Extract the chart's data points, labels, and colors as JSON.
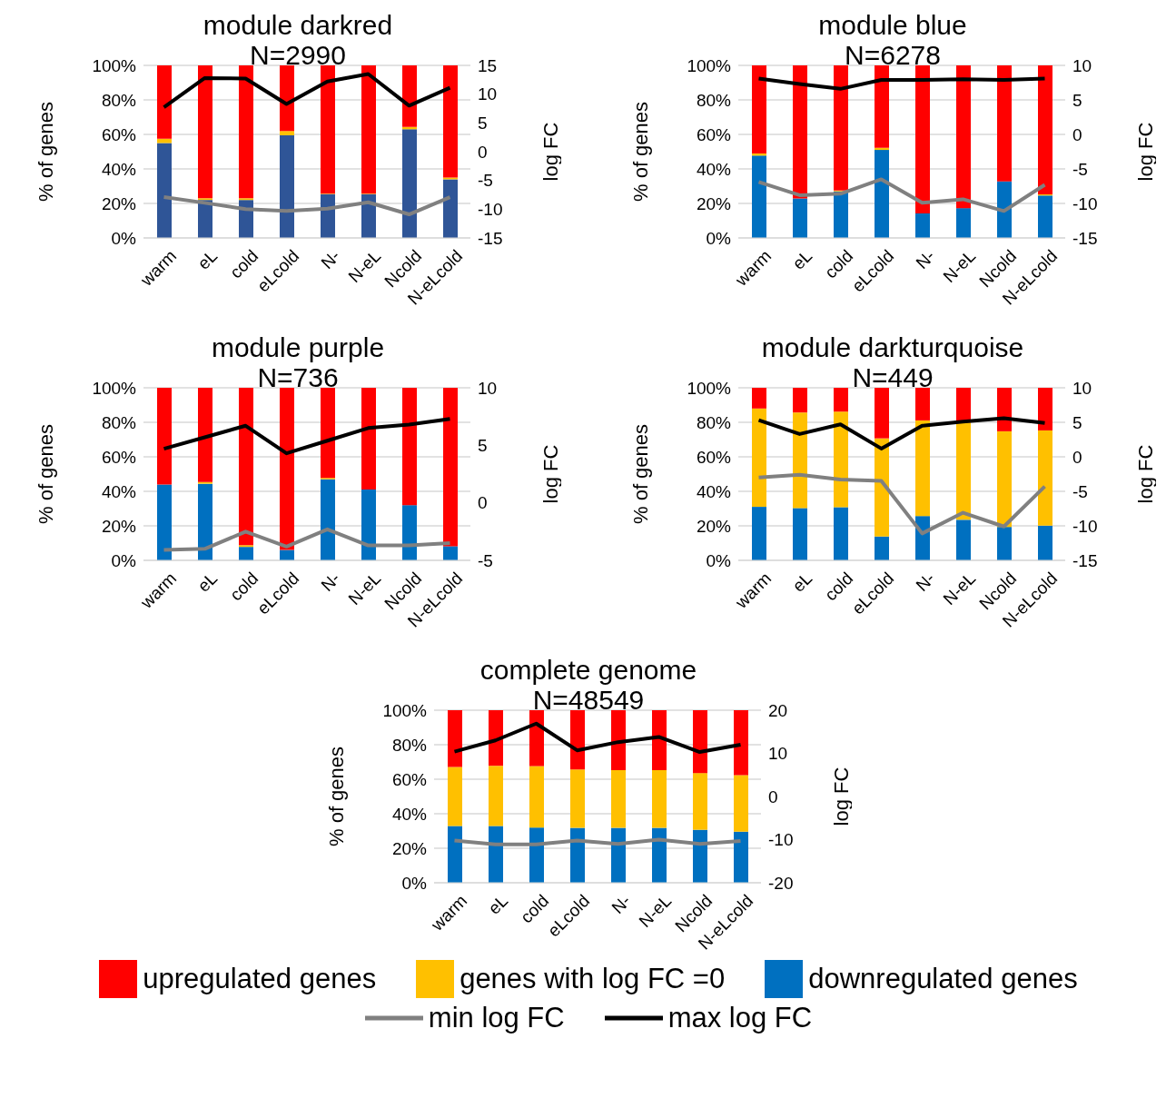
{
  "chart_data": [
    {
      "type": "bar",
      "title": "module darkred",
      "subtitle": "N=2990",
      "ylabel": "% of genes",
      "y2label": "log FC",
      "categories": [
        "warm",
        "eL",
        "cold",
        "eLcold",
        "N-",
        "N-eL",
        "Ncold",
        "N-eLcold"
      ],
      "stacked": true,
      "grid": "y",
      "ylim": [
        0,
        100
      ],
      "yticks": [
        {
          "value": 0,
          "label": "0%"
        },
        {
          "value": 20,
          "label": "20%"
        },
        {
          "value": 40,
          "label": "40%"
        },
        {
          "value": 60,
          "label": "60%"
        },
        {
          "value": 80,
          "label": "80%"
        },
        {
          "value": 100,
          "label": "100%"
        }
      ],
      "y2lim": [
        -15,
        15
      ],
      "y2ticks": [
        -15,
        -10,
        -5,
        0,
        5,
        10,
        15
      ],
      "series": [
        {
          "color": "#2f5597",
          "values": [
            55,
            22,
            22,
            59.5,
            25.3,
            25.3,
            63,
            34
          ]
        },
        {
          "color": "#ffc000",
          "values": [
            2.5,
            1,
            1,
            2.5,
            0.3,
            0.3,
            1.3,
            1
          ]
        },
        {
          "color": "#ff0000",
          "values": [
            42.5,
            77,
            77,
            38,
            74.4,
            74.4,
            35.7,
            65
          ]
        },
        {
          "type": "line",
          "axis": "y2",
          "color": "#808080",
          "values": [
            -7.9,
            -8.9,
            -10,
            -10.3,
            -9.9,
            -8.8,
            -10.9,
            -7.9
          ]
        },
        {
          "type": "line",
          "axis": "y2",
          "color": "#000000",
          "values": [
            7.7,
            12.8,
            12.7,
            8.3,
            12.2,
            13.5,
            8,
            11.1
          ]
        }
      ]
    },
    {
      "type": "bar",
      "title": "module blue",
      "subtitle": "N=6278",
      "ylabel": "% of genes",
      "y2label": "log FC",
      "categories": [
        "warm",
        "eL",
        "cold",
        "eLcold",
        "N-",
        "N-eL",
        "Ncold",
        "N-eLcold"
      ],
      "stacked": true,
      "grid": "y",
      "ylim": [
        0,
        100
      ],
      "yticks": [
        {
          "value": 0,
          "label": "0%"
        },
        {
          "value": 20,
          "label": "20%"
        },
        {
          "value": 40,
          "label": "40%"
        },
        {
          "value": 60,
          "label": "60%"
        },
        {
          "value": 80,
          "label": "80%"
        },
        {
          "value": 100,
          "label": "100%"
        }
      ],
      "y2lim": [
        -15,
        10
      ],
      "y2ticks": [
        -15,
        -10,
        -5,
        0,
        5,
        10
      ],
      "series": [
        {
          "color": "#0070c0",
          "values": [
            47.7,
            22.9,
            27,
            51,
            14.2,
            17.3,
            32.8,
            24.6
          ]
        },
        {
          "color": "#ffc000",
          "values": [
            1.2,
            null,
            0.5,
            1.2,
            0,
            0,
            0,
            0.7
          ]
        },
        {
          "color": "#ff0000",
          "values": [
            51.1,
            77.1,
            72.5,
            47.8,
            85.8,
            82.7,
            67.2,
            74.7
          ]
        },
        {
          "type": "line",
          "axis": "y2",
          "color": "#808080",
          "values": [
            -6.9,
            -8.8,
            -8.6,
            -6.5,
            -9.9,
            -9.4,
            -11.1,
            -7.3
          ]
        },
        {
          "type": "line",
          "axis": "y2",
          "color": "#000000",
          "values": [
            8.1,
            7.3,
            6.6,
            7.9,
            7.9,
            8,
            7.9,
            8.1
          ]
        }
      ]
    },
    {
      "type": "bar",
      "title": "module purple",
      "subtitle": "N=736",
      "ylabel": "% of genes",
      "y2label": "log FC",
      "categories": [
        "warm",
        "eL",
        "cold",
        "eLcold",
        "N-",
        "N-eL",
        "Ncold",
        "N-eLcold"
      ],
      "stacked": true,
      "grid": "y",
      "ylim": [
        0,
        100
      ],
      "yticks": [
        {
          "value": 0,
          "label": "0%"
        },
        {
          "value": 20,
          "label": "20%"
        },
        {
          "value": 40,
          "label": "40%"
        },
        {
          "value": 60,
          "label": "60%"
        },
        {
          "value": 80,
          "label": "80%"
        },
        {
          "value": 100,
          "label": "100%"
        }
      ],
      "y2lim": [
        -5,
        10
      ],
      "y2ticks": [
        -5,
        0,
        5,
        10
      ],
      "series": [
        {
          "color": "#0070c0",
          "values": [
            44,
            44.4,
            7.8,
            6,
            47,
            41,
            32,
            8.2
          ]
        },
        {
          "color": "#ffc000",
          "values": [
            null,
            1,
            1,
            0,
            0.8,
            0,
            0,
            0
          ]
        },
        {
          "color": "#ff0000",
          "values": [
            56,
            54.6,
            91.2,
            94,
            52.2,
            59,
            68,
            91.8
          ]
        },
        {
          "type": "line",
          "axis": "y2",
          "color": "#808080",
          "values": [
            -4.1,
            -4,
            -2.5,
            -3.8,
            -2.3,
            -3.7,
            -3.7,
            -3.5
          ]
        },
        {
          "type": "line",
          "axis": "y2",
          "color": "#000000",
          "values": [
            4.7,
            5.7,
            6.7,
            4.3,
            5.4,
            6.5,
            6.8,
            7.3
          ]
        }
      ]
    },
    {
      "type": "bar",
      "title": "module darkturquoise",
      "subtitle": "N=449",
      "ylabel": "% of genes",
      "y2label": "log FC",
      "categories": [
        "warm",
        "eL",
        "cold",
        "eLcold",
        "N-",
        "N-eL",
        "Ncold",
        "N-eLcold"
      ],
      "stacked": true,
      "grid": "y",
      "ylim": [
        0,
        100
      ],
      "yticks": [
        {
          "value": 0,
          "label": "0%"
        },
        {
          "value": 20,
          "label": "20%"
        },
        {
          "value": 40,
          "label": "40%"
        },
        {
          "value": 60,
          "label": "60%"
        },
        {
          "value": 80,
          "label": "80%"
        },
        {
          "value": 100,
          "label": "100%"
        }
      ],
      "y2lim": [
        -15,
        10
      ],
      "y2ticks": [
        -15,
        -10,
        -5,
        0,
        5,
        10
      ],
      "series": [
        {
          "color": "#0070c0",
          "values": [
            31,
            30.3,
            30.8,
            13.8,
            25.7,
            23.5,
            19.4,
            20.1
          ]
        },
        {
          "color": "#ffc000",
          "values": [
            57,
            55.4,
            55.4,
            56.9,
            55.4,
            56.4,
            55.4,
            55.2
          ]
        },
        {
          "color": "#ff0000",
          "values": [
            12,
            14.3,
            13.8,
            29.3,
            18.9,
            20.1,
            25.2,
            24.7
          ]
        },
        {
          "type": "line",
          "axis": "y2",
          "color": "#808080",
          "values": [
            -3,
            -2.6,
            -3.3,
            -3.5,
            -11.1,
            -8.1,
            -10.1,
            -4.3
          ]
        },
        {
          "type": "line",
          "axis": "y2",
          "color": "#000000",
          "values": [
            5.3,
            3.3,
            4.7,
            1.2,
            4.5,
            5.1,
            5.6,
            4.9
          ]
        }
      ]
    },
    {
      "type": "bar",
      "title": "complete genome",
      "subtitle": "N=48549",
      "ylabel": "% of genes",
      "y2label": "log FC",
      "categories": [
        "warm",
        "eL",
        "cold",
        "eLcold",
        "N-",
        "N-eL",
        "Ncold",
        "N-eLcold"
      ],
      "stacked": true,
      "grid": "y",
      "legend": "bottom",
      "ylim": [
        0,
        100
      ],
      "yticks": [
        {
          "value": 0,
          "label": "0%"
        },
        {
          "value": 20,
          "label": "20%"
        },
        {
          "value": 40,
          "label": "40%"
        },
        {
          "value": 60,
          "label": "60%"
        },
        {
          "value": 80,
          "label": "80%"
        },
        {
          "value": 100,
          "label": "100%"
        }
      ],
      "y2lim": [
        -20,
        20
      ],
      "y2ticks": [
        -20,
        -10,
        0,
        10,
        20
      ],
      "series": [
        {
          "name": "downregulated genes",
          "color": "#0070c0",
          "values": [
            32.9,
            32.9,
            32,
            31.8,
            31.8,
            31.8,
            30.7,
            29.6
          ]
        },
        {
          "name": "genes with log FC =0",
          "color": "#ffc000",
          "values": [
            34.2,
            34.9,
            35.6,
            33.8,
            33.5,
            33.5,
            32.9,
            32.8
          ]
        },
        {
          "name": "upregulated genes",
          "color": "#ff0000",
          "values": [
            32.9,
            32.2,
            32.4,
            34.4,
            34.7,
            34.7,
            36.4,
            37.6
          ]
        },
        {
          "type": "line",
          "name": "min log FC",
          "axis": "y2",
          "color": "#808080",
          "values": [
            -10.2,
            -11.1,
            -11.1,
            -10.2,
            -11,
            -10,
            -11,
            -10.3
          ]
        },
        {
          "type": "line",
          "name": "max log FC",
          "axis": "y2",
          "color": "#000000",
          "values": [
            10.4,
            13,
            16.9,
            10.7,
            12.6,
            13.8,
            10.3,
            12
          ]
        }
      ]
    }
  ]
}
